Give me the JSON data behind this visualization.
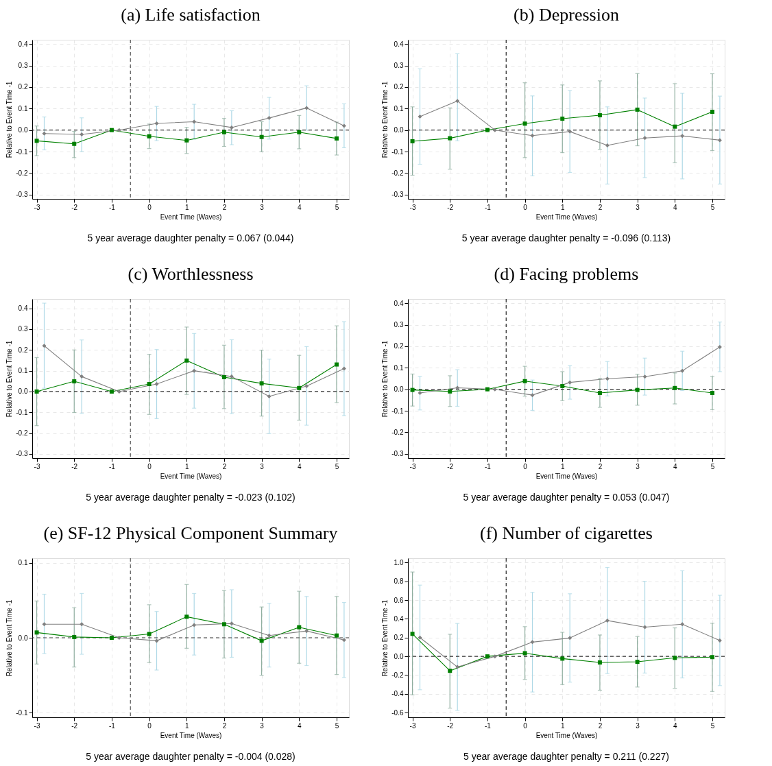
{
  "chart_data": [
    {
      "type": "line",
      "title": "(a) Life satisfaction",
      "xlabel": "Event Time (Waves)",
      "ylabel": "Relative to Event Time -1",
      "annotations": [
        "5 year average daughter penalty = 0.067 (0.044)"
      ],
      "xlim": [
        -3.12,
        5.33
      ],
      "xticks": [
        -3,
        -2,
        -1,
        0,
        1,
        2,
        3,
        4,
        5
      ],
      "ylim": [
        -0.32,
        0.42
      ],
      "yticks": [
        {
          "value": -0.3,
          "label": "-0.3"
        },
        {
          "value": -0.2,
          "label": "-0.2"
        },
        {
          "value": -0.1,
          "label": "-0.1"
        },
        {
          "value": 0,
          "label": "0.0"
        },
        0.1,
        0.2,
        0.3,
        0.4
      ],
      "grid": true,
      "ref_lines": [
        {
          "axis": "y",
          "value": 0,
          "color": "#333333",
          "line_style": "dashed"
        },
        {
          "axis": "x",
          "value": -0.5,
          "color": "#555555",
          "line_style": "dashed"
        }
      ],
      "series": [
        {
          "color": "#008000",
          "marker": "square",
          "x": [
            -3,
            -2,
            -1,
            0,
            1,
            2,
            3,
            4,
            5
          ],
          "values": [
            -0.05,
            -0.064,
            0,
            -0.029,
            -0.048,
            -0.01,
            -0.032,
            -0.01,
            -0.039
          ],
          "errors": [
            [
              -0.119,
              0.019
            ],
            [
              -0.128,
              -0.006
            ],
            null,
            [
              -0.086,
              0.028
            ],
            [
              -0.109,
              0.013
            ],
            [
              -0.076,
              0.054
            ],
            [
              -0.101,
              0.039
            ],
            [
              -0.087,
              0.068
            ],
            [
              -0.116,
              0.037
            ]
          ]
        },
        {
          "color": "#808080",
          "marker": "diamond",
          "x": [
            -2.8,
            -1.8,
            -0.8,
            0.2,
            1.2,
            2.2,
            3.2,
            4.2,
            5.2
          ],
          "values": [
            -0.016,
            -0.02,
            0,
            0.031,
            0.039,
            0.012,
            0.056,
            0.103,
            0.02
          ],
          "errors": [
            [
              -0.092,
              0.061
            ],
            [
              -0.1,
              0.057
            ],
            null,
            [
              -0.049,
              0.11
            ],
            [
              -0.043,
              0.12
            ],
            [
              -0.068,
              0.09
            ],
            [
              -0.042,
              0.152
            ],
            [
              0.0,
              0.206
            ],
            [
              -0.082,
              0.122
            ]
          ]
        }
      ]
    },
    {
      "type": "line",
      "title": "(b) Depression",
      "xlabel": "Event Time (Waves)",
      "ylabel": "Relative to Event Time -1",
      "annotations": [
        "5 year average daughter penalty = -0.096 (0.113)"
      ],
      "xlim": [
        -3.12,
        5.33
      ],
      "xticks": [
        -3,
        -2,
        -1,
        0,
        1,
        2,
        3,
        4,
        5
      ],
      "ylim": [
        -0.32,
        0.42
      ],
      "yticks": [
        {
          "value": -0.3,
          "label": "-0.3"
        },
        {
          "value": -0.2,
          "label": "-0.2"
        },
        {
          "value": -0.1,
          "label": "-0.1"
        },
        {
          "value": 0,
          "label": "0.0"
        },
        0.1,
        0.2,
        0.3,
        0.4
      ],
      "grid": true,
      "ref_lines": [
        {
          "axis": "y",
          "value": 0,
          "color": "#333333",
          "line_style": "dashed"
        },
        {
          "axis": "x",
          "value": -0.5,
          "color": "#222222",
          "line_style": "dashed"
        }
      ],
      "series": [
        {
          "color": "#008000",
          "marker": "square",
          "x": [
            -3,
            -2,
            -1,
            0,
            1,
            2,
            3,
            4,
            5
          ],
          "values": [
            -0.052,
            -0.038,
            0,
            0.03,
            0.053,
            0.069,
            0.095,
            0.016,
            0.085
          ],
          "errors": [
            [
              -0.21,
              0.108
            ],
            [
              -0.182,
              0.103
            ],
            null,
            [
              -0.128,
              0.22
            ],
            [
              -0.105,
              0.21
            ],
            [
              -0.09,
              0.229
            ],
            [
              -0.073,
              0.263
            ],
            [
              -0.152,
              0.216
            ],
            [
              -0.095,
              0.262
            ]
          ]
        },
        {
          "color": "#808080",
          "marker": "diamond",
          "x": [
            -2.8,
            -1.8,
            -0.8,
            0.2,
            1.2,
            2.2,
            3.2,
            4.2,
            5.2
          ],
          "values": [
            0.063,
            0.135,
            0,
            -0.026,
            -0.007,
            -0.071,
            -0.037,
            -0.027,
            -0.047
          ],
          "errors": [
            [
              -0.159,
              0.285
            ],
            [
              -0.05,
              0.355
            ],
            null,
            [
              -0.213,
              0.159
            ],
            [
              -0.197,
              0.184
            ],
            [
              -0.251,
              0.108
            ],
            [
              -0.221,
              0.149
            ],
            [
              -0.227,
              0.171
            ],
            [
              -0.251,
              0.158
            ]
          ]
        }
      ]
    },
    {
      "type": "line",
      "title": "(c) Worthlessness",
      "xlabel": "Event Time (Waves)",
      "ylabel": "Relative to Event Time -1",
      "annotations": [
        "5 year average daughter penalty = -0.023 (0.102)"
      ],
      "xlim": [
        -3.12,
        5.33
      ],
      "xticks": [
        -3,
        -2,
        -1,
        0,
        1,
        2,
        3,
        4,
        5
      ],
      "ylim": [
        -0.32,
        0.445
      ],
      "yticks": [
        {
          "value": -0.3,
          "label": "-0.3"
        },
        {
          "value": -0.2,
          "label": "-0.2"
        },
        {
          "value": -0.1,
          "label": "-0.1"
        },
        {
          "value": 0,
          "label": "0.0"
        },
        0.1,
        0.2,
        0.3,
        0.4
      ],
      "grid": true,
      "ref_lines": [
        {
          "axis": "y",
          "value": 0,
          "color": "#333333",
          "line_style": "dashed"
        },
        {
          "axis": "x",
          "value": -0.5,
          "color": "#555555",
          "line_style": "dashed"
        }
      ],
      "series": [
        {
          "color": "#008000",
          "marker": "square",
          "x": [
            -3,
            -2,
            -1,
            0,
            1,
            2,
            3,
            4,
            5
          ],
          "values": [
            0,
            0.049,
            0,
            0.036,
            0.149,
            0.069,
            0.039,
            0.017,
            0.13
          ],
          "errors": [
            [
              -0.164,
              0.163
            ],
            [
              -0.101,
              0.2
            ],
            null,
            [
              -0.11,
              0.179
            ],
            [
              -0.014,
              0.31
            ],
            [
              -0.082,
              0.223
            ],
            [
              -0.118,
              0.199
            ],
            [
              -0.138,
              0.174
            ],
            [
              -0.053,
              0.316
            ]
          ]
        },
        {
          "color": "#808080",
          "marker": "diamond",
          "x": [
            -2.8,
            -1.8,
            -0.8,
            0.2,
            1.2,
            2.2,
            3.2,
            4.2,
            5.2
          ],
          "values": [
            0.22,
            0.072,
            0,
            0.036,
            0.1,
            0.072,
            -0.023,
            0.026,
            0.11
          ],
          "errors": [
            [
              0.016,
              0.425
            ],
            [
              -0.105,
              0.248
            ],
            null,
            [
              -0.13,
              0.202
            ],
            [
              -0.08,
              0.279
            ],
            [
              -0.106,
              0.249
            ],
            [
              -0.202,
              0.156
            ],
            [
              -0.162,
              0.216
            ],
            [
              -0.116,
              0.336
            ]
          ]
        }
      ]
    },
    {
      "type": "line",
      "title": "(d) Facing problems",
      "xlabel": "Event Time (Waves)",
      "ylabel": "Relative to Event Time -1",
      "annotations": [
        "5 year average daughter penalty = 0.053 (0.047)"
      ],
      "xlim": [
        -3.12,
        5.33
      ],
      "xticks": [
        -3,
        -2,
        -1,
        0,
        1,
        2,
        3,
        4,
        5
      ],
      "ylim": [
        -0.32,
        0.42
      ],
      "yticks": [
        {
          "value": -0.3,
          "label": "-0.3"
        },
        {
          "value": -0.2,
          "label": "-0.2"
        },
        {
          "value": -0.1,
          "label": "-0.1"
        },
        {
          "value": 0,
          "label": "0.0"
        },
        0.1,
        0.2,
        0.3,
        0.4
      ],
      "grid": true,
      "ref_lines": [
        {
          "axis": "y",
          "value": 0,
          "color": "#333333",
          "line_style": "dashed"
        },
        {
          "axis": "x",
          "value": -0.5,
          "color": "#222222",
          "line_style": "dashed"
        }
      ],
      "series": [
        {
          "color": "#008000",
          "marker": "square",
          "x": [
            -3,
            -2,
            -1,
            0,
            1,
            2,
            3,
            4,
            5
          ],
          "values": [
            -0.003,
            -0.01,
            0,
            0.038,
            0.015,
            -0.017,
            -0.003,
            0.006,
            -0.017
          ],
          "errors": [
            [
              -0.078,
              0.071
            ],
            [
              -0.08,
              0.063
            ],
            null,
            [
              -0.032,
              0.107
            ],
            [
              -0.053,
              0.082
            ],
            [
              -0.084,
              0.051
            ],
            [
              -0.074,
              0.07
            ],
            [
              -0.068,
              0.076
            ],
            [
              -0.095,
              0.06
            ]
          ]
        },
        {
          "color": "#808080",
          "marker": "diamond",
          "x": [
            -2.8,
            -1.8,
            -0.8,
            0.2,
            1.2,
            2.2,
            3.2,
            4.2,
            5.2
          ],
          "values": [
            -0.017,
            0.007,
            0,
            -0.027,
            0.032,
            0.049,
            0.059,
            0.086,
            0.197
          ],
          "errors": [
            [
              -0.096,
              0.06
            ],
            [
              -0.079,
              0.091
            ],
            null,
            [
              -0.098,
              0.043
            ],
            [
              -0.046,
              0.11
            ],
            [
              -0.031,
              0.129
            ],
            [
              -0.027,
              0.145
            ],
            [
              -0.006,
              0.177
            ],
            [
              0.082,
              0.313
            ]
          ]
        }
      ]
    },
    {
      "type": "line",
      "title": "(e) SF-12 Physical Component Summary",
      "xlabel": "Event Time (Waves)",
      "ylabel": "Relative to Event Time -1",
      "annotations": [
        "5 year average daughter penalty = -0.004 (0.028)"
      ],
      "xlim": [
        -3.12,
        5.33
      ],
      "xticks": [
        -3,
        -2,
        -1,
        0,
        1,
        2,
        3,
        4,
        5
      ],
      "ylim": [
        -0.106,
        0.106
      ],
      "yticks": [
        {
          "value": -0.1,
          "label": "-0.1"
        },
        {
          "value": 0,
          "label": "0.0"
        },
        0.1
      ],
      "grid": true,
      "ref_lines": [
        {
          "axis": "y",
          "value": 0,
          "color": "#333333",
          "line_style": "dashed"
        },
        {
          "axis": "x",
          "value": -0.5,
          "color": "#555555",
          "line_style": "dashed"
        }
      ],
      "series": [
        {
          "color": "#008000",
          "marker": "square",
          "x": [
            -3,
            -2,
            -1,
            0,
            1,
            2,
            3,
            4,
            5
          ],
          "values": [
            0.007,
            0.001,
            0,
            0.005,
            0.028,
            0.018,
            -0.004,
            0.014,
            0.003
          ],
          "errors": [
            [
              -0.035,
              0.049
            ],
            [
              -0.039,
              0.04
            ],
            null,
            [
              -0.033,
              0.044
            ],
            [
              -0.014,
              0.071
            ],
            [
              -0.027,
              0.063
            ],
            [
              -0.05,
              0.041
            ],
            [
              -0.034,
              0.062
            ],
            [
              -0.049,
              0.055
            ]
          ]
        },
        {
          "color": "#808080",
          "marker": "diamond",
          "x": [
            -2.8,
            -1.8,
            -0.8,
            0.2,
            1.2,
            2.2,
            3.2,
            4.2,
            5.2
          ],
          "values": [
            0.018,
            0.018,
            0,
            -0.004,
            0.017,
            0.019,
            0.003,
            0.009,
            -0.003
          ],
          "errors": [
            [
              -0.021,
              0.058
            ],
            [
              -0.022,
              0.059
            ],
            null,
            [
              -0.043,
              0.035
            ],
            [
              -0.023,
              0.059
            ],
            [
              -0.026,
              0.064
            ],
            [
              -0.039,
              0.046
            ],
            [
              -0.037,
              0.055
            ],
            [
              -0.053,
              0.047
            ]
          ]
        }
      ]
    },
    {
      "type": "line",
      "title": "(f) Number of cigarettes",
      "xlabel": "Event Time (Waves)",
      "ylabel": "Relative to Event Time -1",
      "annotations": [
        "5 year average daughter penalty = 0.211 (0.227)"
      ],
      "xlim": [
        -3.12,
        5.33
      ],
      "xticks": [
        -3,
        -2,
        -1,
        0,
        1,
        2,
        3,
        4,
        5
      ],
      "ylim": [
        -0.65,
        1.047
      ],
      "yticks": [
        {
          "value": -0.6,
          "label": "-0.6"
        },
        {
          "value": -0.4,
          "label": "-0.4"
        },
        {
          "value": -0.2,
          "label": "-0.2"
        },
        {
          "value": 0,
          "label": "0.0"
        },
        0.2,
        0.4,
        0.6,
        0.8,
        {
          "value": 1,
          "label": "1.0"
        }
      ],
      "grid": true,
      "ref_lines": [
        {
          "axis": "y",
          "value": 0,
          "color": "#333333",
          "line_style": "dashed"
        },
        {
          "axis": "x",
          "value": -0.5,
          "color": "#222222",
          "line_style": "dashed"
        }
      ],
      "series": [
        {
          "color": "#008000",
          "marker": "square",
          "x": [
            -3,
            -2,
            -1,
            0,
            1,
            2,
            3,
            4,
            5
          ],
          "values": [
            0.24,
            -0.154,
            0,
            0.034,
            -0.024,
            -0.065,
            -0.058,
            -0.016,
            -0.008
          ],
          "errors": [
            [
              -0.41,
              0.9
            ],
            [
              -0.552,
              0.236
            ],
            null,
            [
              -0.246,
              0.317
            ],
            [
              -0.301,
              0.257
            ],
            [
              -0.361,
              0.228
            ],
            [
              -0.327,
              0.212
            ],
            [
              -0.34,
              0.304
            ],
            [
              -0.374,
              0.353
            ]
          ]
        },
        {
          "color": "#808080",
          "marker": "diamond",
          "x": [
            -2.8,
            -1.8,
            -0.8,
            0.2,
            1.2,
            2.2,
            3.2,
            4.2,
            5.2
          ],
          "values": [
            0.2,
            -0.113,
            0,
            0.152,
            0.196,
            0.382,
            0.312,
            0.343,
            0.17
          ],
          "errors": [
            [
              -0.356,
              0.76
            ],
            [
              -0.576,
              0.351
            ],
            null,
            [
              -0.38,
              0.683
            ],
            [
              -0.275,
              0.668
            ],
            [
              -0.183,
              0.948
            ],
            [
              -0.178,
              0.801
            ],
            [
              -0.23,
              0.914
            ],
            [
              -0.312,
              0.652
            ]
          ]
        }
      ]
    }
  ]
}
